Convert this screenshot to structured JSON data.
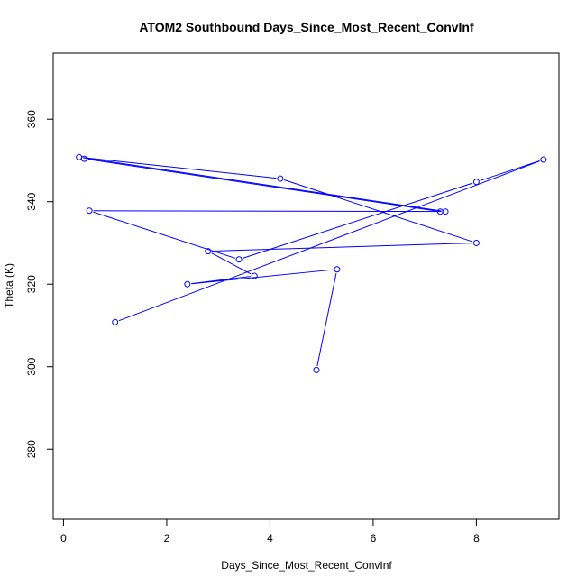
{
  "chart_data": {
    "type": "line",
    "title": "ATOM2 Southbound Days_Since_Most_Recent_ConvInf",
    "xlabel": "Days_Since_Most_Recent_ConvInf",
    "ylabel": "Theta (K)",
    "xlim": [
      -0.2,
      9.6
    ],
    "ylim": [
      263,
      376
    ],
    "x_ticks": [
      0,
      2,
      4,
      6,
      8
    ],
    "y_ticks": [
      280,
      300,
      320,
      340,
      360
    ],
    "grid": false,
    "colors": {
      "series": "#0000ff",
      "axis": "#000000"
    },
    "markers": "open-circle",
    "series": [
      {
        "points": [
          {
            "x": 4.9,
            "y": 299.2
          },
          {
            "x": 5.3,
            "y": 323.6
          },
          {
            "x": 2.4,
            "y": 320.0
          },
          {
            "x": 3.7,
            "y": 322.0
          },
          {
            "x": 2.8,
            "y": 328.0
          },
          {
            "x": 8.0,
            "y": 330.0
          },
          {
            "x": 4.2,
            "y": 345.6
          },
          {
            "x": 0.3,
            "y": 350.8
          },
          {
            "x": 7.4,
            "y": 337.6
          },
          {
            "x": 0.5,
            "y": 337.8
          },
          {
            "x": 3.4,
            "y": 326.0
          },
          {
            "x": 8.0,
            "y": 344.8
          },
          {
            "x": 9.3,
            "y": 350.2
          },
          {
            "x": 1.0,
            "y": 310.8
          }
        ]
      },
      {
        "points": [
          {
            "x": 0.4,
            "y": 350.4
          },
          {
            "x": 7.3,
            "y": 337.6
          }
        ]
      }
    ]
  }
}
